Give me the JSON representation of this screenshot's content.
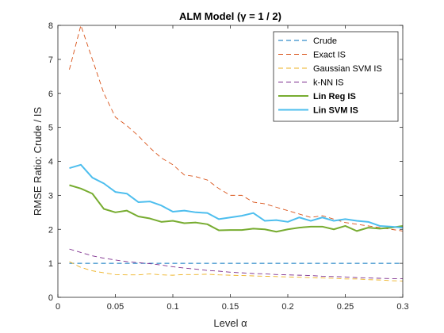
{
  "chart_data": {
    "type": "line",
    "title": "ALM Model (γ = 1 / 2)",
    "xlabel": "Level α",
    "ylabel": "RMSE Ratio: Crude / IS",
    "xlim": [
      0,
      0.3
    ],
    "ylim": [
      0,
      8
    ],
    "xticks": [
      0,
      0.05,
      0.1,
      0.15,
      0.2,
      0.25,
      0.3
    ],
    "xtick_labels": [
      "0",
      "0.05",
      "0.1",
      "0.15",
      "0.2",
      "0.25",
      "0.3"
    ],
    "yticks": [
      0,
      1,
      2,
      3,
      4,
      5,
      6,
      7,
      8
    ],
    "ytick_labels": [
      "0",
      "1",
      "2",
      "3",
      "4",
      "5",
      "6",
      "7",
      "8"
    ],
    "grid": false,
    "legend_position": "top-right",
    "x": [
      0.01,
      0.02,
      0.03,
      0.04,
      0.05,
      0.06,
      0.07,
      0.08,
      0.09,
      0.1,
      0.11,
      0.12,
      0.13,
      0.14,
      0.15,
      0.16,
      0.17,
      0.18,
      0.19,
      0.2,
      0.21,
      0.22,
      0.23,
      0.24,
      0.25,
      0.26,
      0.27,
      0.28,
      0.29,
      0.3
    ],
    "series": [
      {
        "name": "Crude",
        "color": "#0072BD",
        "style": "dashed",
        "bold": false,
        "values": [
          1,
          1,
          1,
          1,
          1,
          1,
          1,
          1,
          1,
          1,
          1,
          1,
          1,
          1,
          1,
          1,
          1,
          1,
          1,
          1,
          1,
          1,
          1,
          1,
          1,
          1,
          1,
          1,
          1,
          1
        ]
      },
      {
        "name": "Exact IS",
        "color": "#D95319",
        "style": "dashed",
        "bold": false,
        "values": [
          6.7,
          8.0,
          7.0,
          6.0,
          5.3,
          5.05,
          4.75,
          4.4,
          4.1,
          3.9,
          3.6,
          3.55,
          3.45,
          3.2,
          3.0,
          3.0,
          2.8,
          2.75,
          2.65,
          2.55,
          2.45,
          2.35,
          2.4,
          2.3,
          2.2,
          2.15,
          2.1,
          2.05,
          2.0,
          1.95
        ]
      },
      {
        "name": "Gaussian SVM IS",
        "color": "#EDB120",
        "style": "dashed",
        "bold": false,
        "values": [
          1.05,
          0.88,
          0.78,
          0.72,
          0.67,
          0.66,
          0.66,
          0.69,
          0.66,
          0.65,
          0.67,
          0.67,
          0.68,
          0.66,
          0.65,
          0.64,
          0.63,
          0.62,
          0.61,
          0.6,
          0.59,
          0.58,
          0.57,
          0.56,
          0.54,
          0.54,
          0.52,
          0.51,
          0.49,
          0.48
        ]
      },
      {
        "name": "k-NN IS",
        "color": "#7E2F8E",
        "style": "dashed",
        "bold": false,
        "values": [
          1.42,
          1.32,
          1.22,
          1.15,
          1.1,
          1.05,
          1.02,
          0.99,
          0.95,
          0.9,
          0.86,
          0.83,
          0.79,
          0.77,
          0.74,
          0.72,
          0.7,
          0.69,
          0.67,
          0.66,
          0.65,
          0.64,
          0.62,
          0.61,
          0.6,
          0.58,
          0.57,
          0.56,
          0.55,
          0.55
        ]
      },
      {
        "name": "Lin Reg IS",
        "color": "#77AC30",
        "style": "solid",
        "bold": true,
        "values": [
          3.3,
          3.2,
          3.05,
          2.6,
          2.5,
          2.55,
          2.38,
          2.32,
          2.22,
          2.25,
          2.18,
          2.2,
          2.15,
          1.97,
          1.98,
          1.98,
          2.02,
          2.0,
          1.93,
          2.0,
          2.05,
          2.08,
          2.08,
          2.0,
          2.1,
          1.95,
          2.05,
          2.02,
          2.05,
          2.1
        ]
      },
      {
        "name": "Lin SVM IS",
        "color": "#4DBEEE",
        "style": "solid",
        "bold": true,
        "values": [
          3.8,
          3.9,
          3.52,
          3.35,
          3.1,
          3.05,
          2.8,
          2.82,
          2.7,
          2.52,
          2.55,
          2.5,
          2.48,
          2.3,
          2.35,
          2.4,
          2.48,
          2.25,
          2.27,
          2.22,
          2.35,
          2.25,
          2.35,
          2.25,
          2.3,
          2.25,
          2.22,
          2.1,
          2.08,
          2.05
        ]
      }
    ]
  }
}
